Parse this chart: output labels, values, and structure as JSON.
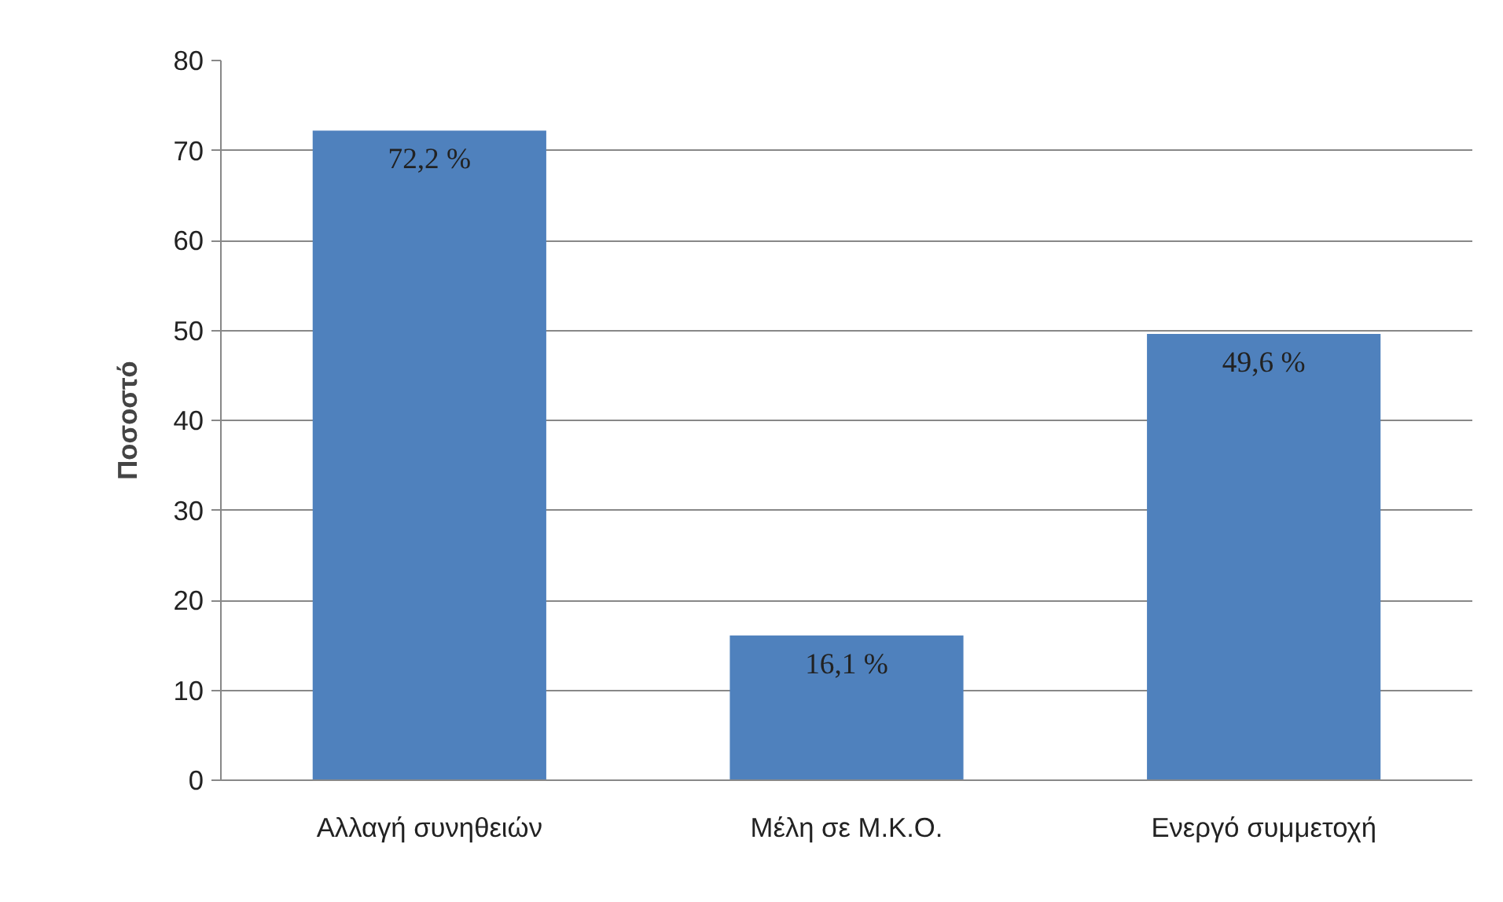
{
  "chart_data": {
    "type": "bar",
    "ylabel": "Ποσοστό",
    "categories": [
      "Αλλαγή συνηθειών",
      "Μέλη σε Μ.Κ.Ο.",
      "Ενεργό συμμετοχή"
    ],
    "values": [
      72.2,
      16.1,
      49.6
    ],
    "value_labels": [
      "72,2 %",
      "16,1 %",
      "49,6 %"
    ],
    "color": "#4f81bd",
    "ylim": [
      0,
      80
    ],
    "yticks": [
      0,
      10,
      20,
      30,
      40,
      50,
      60,
      70,
      80
    ],
    "grid": "y"
  }
}
